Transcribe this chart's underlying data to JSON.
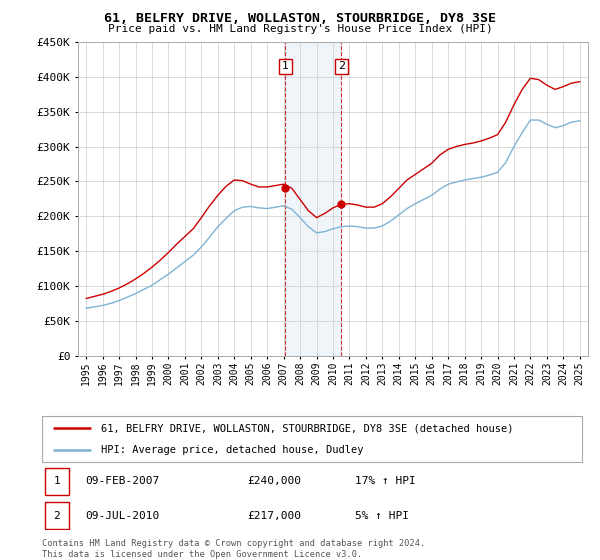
{
  "title": "61, BELFRY DRIVE, WOLLASTON, STOURBRIDGE, DY8 3SE",
  "subtitle": "Price paid vs. HM Land Registry's House Price Index (HPI)",
  "legend_label_red": "61, BELFRY DRIVE, WOLLASTON, STOURBRIDGE, DY8 3SE (detached house)",
  "legend_label_blue": "HPI: Average price, detached house, Dudley",
  "footer": "Contains HM Land Registry data © Crown copyright and database right 2024.\nThis data is licensed under the Open Government Licence v3.0.",
  "transaction1_date": "09-FEB-2007",
  "transaction1_price": "£240,000",
  "transaction1_hpi": "17% ↑ HPI",
  "transaction2_date": "09-JUL-2010",
  "transaction2_price": "£217,000",
  "transaction2_hpi": "5% ↑ HPI",
  "red_color": "#cc0000",
  "blue_color": "#7fb3d3",
  "marker1_year": 2007.1,
  "marker1_value": 240000,
  "marker2_year": 2010.5,
  "marker2_value": 217000,
  "ylim_max": 450000,
  "xlim_start": 1994.5,
  "xlim_end": 2025.5,
  "years": [
    1995,
    1995.5,
    1996,
    1996.5,
    1997,
    1997.5,
    1998,
    1998.5,
    1999,
    1999.5,
    2000,
    2000.5,
    2001,
    2001.5,
    2002,
    2002.5,
    2003,
    2003.5,
    2004,
    2004.5,
    2005,
    2005.5,
    2006,
    2006.5,
    2007,
    2007.5,
    2008,
    2008.5,
    2009,
    2009.5,
    2010,
    2010.5,
    2011,
    2011.5,
    2012,
    2012.5,
    2013,
    2013.5,
    2014,
    2014.5,
    2015,
    2015.5,
    2016,
    2016.5,
    2017,
    2017.5,
    2018,
    2018.5,
    2019,
    2019.5,
    2020,
    2020.5,
    2021,
    2021.5,
    2022,
    2022.5,
    2023,
    2023.5,
    2024,
    2024.5,
    2025
  ],
  "hpi": [
    68000,
    70000,
    72000,
    75000,
    79000,
    84000,
    89000,
    95000,
    101000,
    109000,
    117000,
    126000,
    135000,
    144000,
    156000,
    170000,
    185000,
    197000,
    208000,
    213000,
    214000,
    212000,
    211000,
    213000,
    215000,
    210000,
    198000,
    185000,
    176000,
    178000,
    182000,
    185000,
    186000,
    185000,
    183000,
    183000,
    186000,
    193000,
    202000,
    211000,
    218000,
    224000,
    230000,
    239000,
    246000,
    249000,
    252000,
    254000,
    256000,
    259000,
    263000,
    277000,
    300000,
    320000,
    338000,
    338000,
    332000,
    327000,
    330000,
    335000,
    337000
  ],
  "red": [
    82000,
    85000,
    88000,
    92000,
    97000,
    103000,
    110000,
    118000,
    127000,
    137000,
    148000,
    160000,
    171000,
    182000,
    198000,
    215000,
    230000,
    243000,
    252000,
    251000,
    246000,
    242000,
    242000,
    244000,
    246000,
    240000,
    224000,
    208000,
    198000,
    204000,
    212000,
    217000,
    218000,
    216000,
    213000,
    213000,
    218000,
    228000,
    240000,
    252000,
    260000,
    268000,
    276000,
    288000,
    296000,
    300000,
    303000,
    305000,
    308000,
    312000,
    317000,
    335000,
    360000,
    382000,
    398000,
    396000,
    388000,
    382000,
    386000,
    391000,
    393000
  ]
}
